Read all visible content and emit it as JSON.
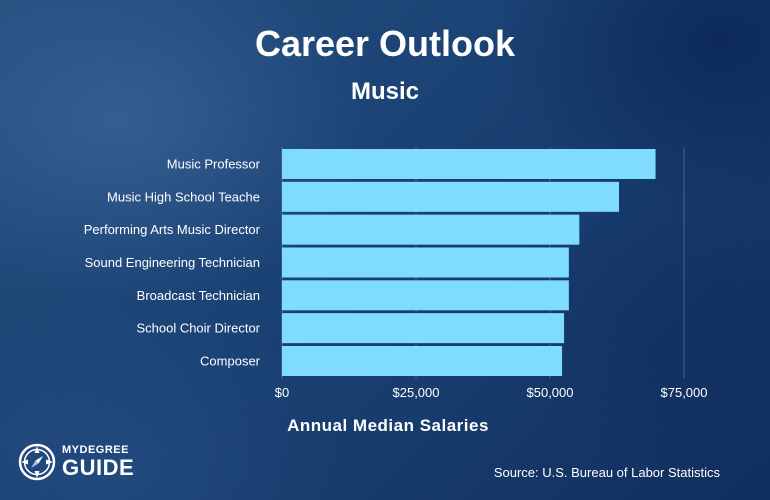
{
  "header": {
    "title": "Career Outlook",
    "subtitle": "Music"
  },
  "chart_data": {
    "type": "bar",
    "orientation": "horizontal",
    "categories": [
      "Music Professor",
      "Music High School Teache",
      "Performing Arts Music Director",
      "Sound Engineering Technician",
      "Broadcast Technician",
      "School Choir Director",
      "Composer"
    ],
    "values": [
      69690,
      62870,
      55470,
      53520,
      53520,
      52620,
      52250
    ],
    "xlabel": "Annual Median Salaries",
    "xlim": [
      0,
      75000
    ],
    "xticks": [
      0,
      25000,
      50000,
      75000
    ],
    "xtick_labels": [
      "$0",
      "$25,000",
      "$50,000",
      "$75,000"
    ],
    "grid": true,
    "bar_color": "#7fdcfe"
  },
  "footer": {
    "source": "Source: U.S. Bureau of Labor Statistics"
  },
  "logo": {
    "top_text": "MYDEGREE",
    "bottom_text": "GUIDE",
    "icon": "compass-icon"
  }
}
